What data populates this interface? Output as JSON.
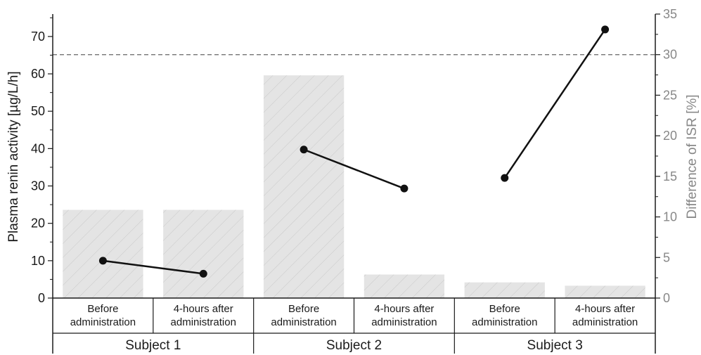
{
  "chart_data": {
    "type": "bar",
    "title": "",
    "ylabel": "Plasma renin activity [µg/L/h]",
    "y2label": "Difference of ISR [%]",
    "ylim": [
      0,
      76
    ],
    "y2lim": [
      0,
      35
    ],
    "yticks": [
      "0",
      "10",
      "20",
      "30",
      "40",
      "50",
      "60",
      "70"
    ],
    "y2ticks": [
      "0",
      "5",
      "10",
      "15",
      "20",
      "25",
      "30",
      "35"
    ],
    "groups": [
      "Subject 1",
      "Subject 2",
      "Subject 3"
    ],
    "categories": [
      [
        "Before",
        "administration"
      ],
      [
        "4-hours after",
        "administration"
      ],
      [
        "Before",
        "administration"
      ],
      [
        "4-hours after",
        "administration"
      ],
      [
        "Before",
        "administration"
      ],
      [
        "4-hours after",
        "administration"
      ]
    ],
    "bars": {
      "axis": "left",
      "values": [
        23.6,
        23.6,
        59.6,
        6.3,
        4.2,
        3.3
      ]
    },
    "lines": {
      "axis": "right",
      "values": [
        4.6,
        3.0,
        18.3,
        13.5,
        14.8,
        33.1
      ],
      "segments": [
        [
          0,
          1
        ],
        [
          2,
          3
        ],
        [
          4,
          5
        ]
      ]
    },
    "reference_line": {
      "axis": "right",
      "value": 30.0,
      "style": "dashed"
    },
    "colors": {
      "bar_fill": "#e4e4e4",
      "bar_hatch": "#c8c8c8",
      "line": "#111111",
      "right_axis": "#888888",
      "reference": "#666666"
    }
  }
}
